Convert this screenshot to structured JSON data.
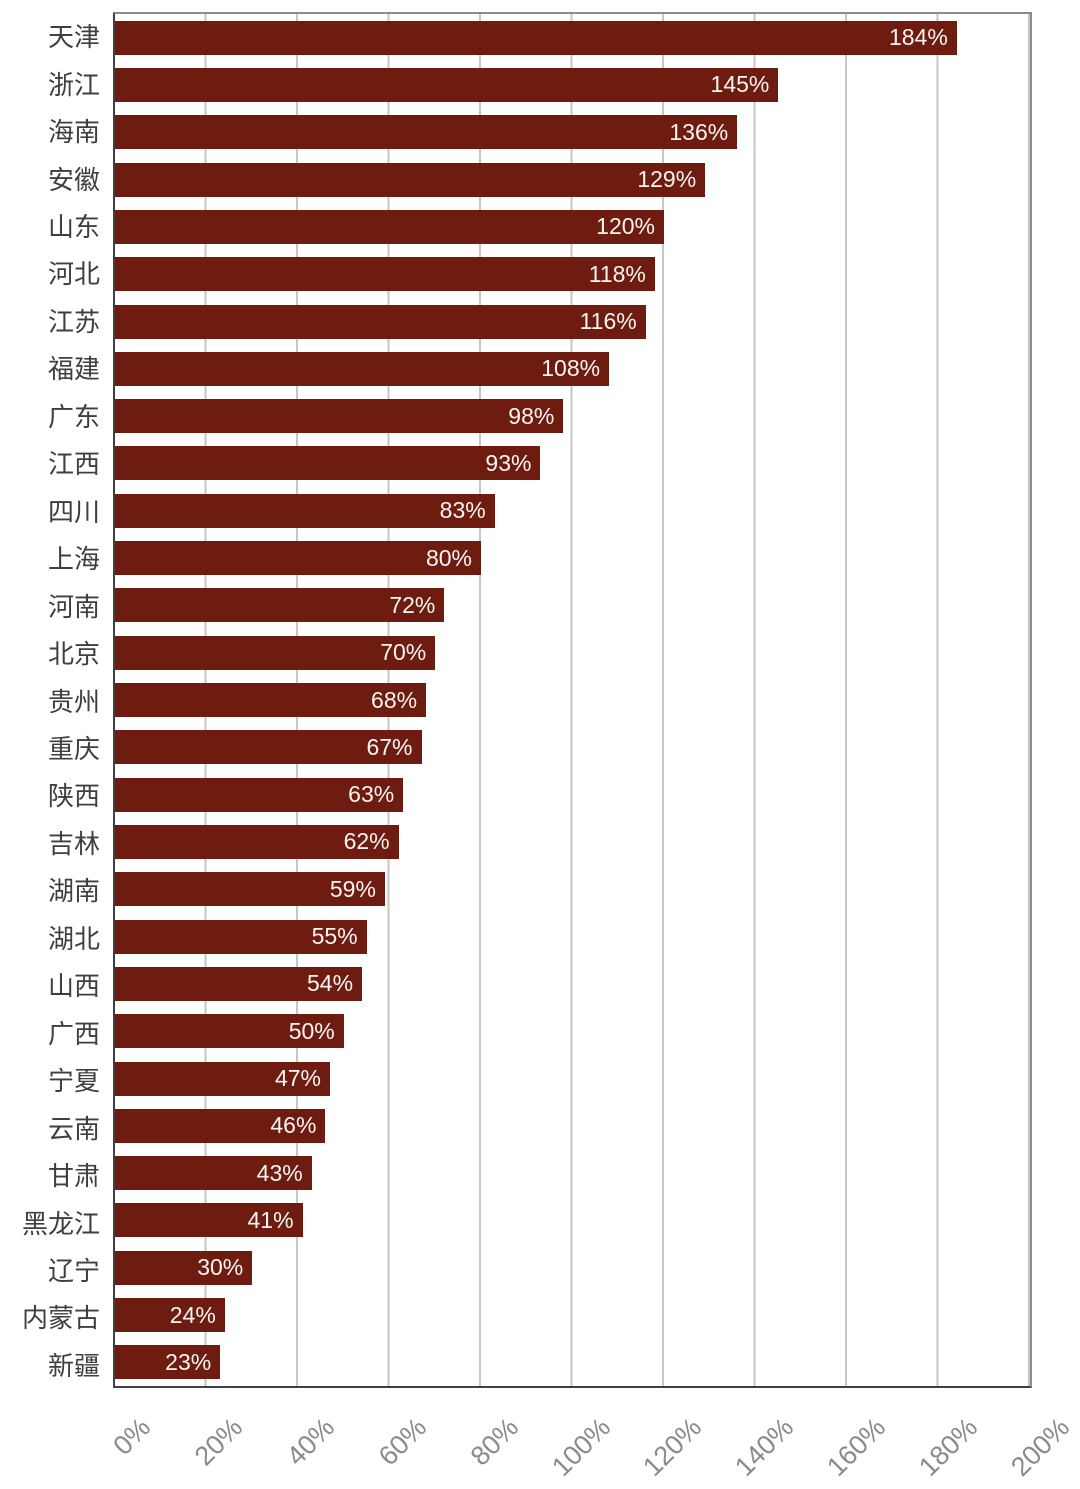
{
  "chart_data": {
    "type": "bar",
    "orientation": "horizontal",
    "categories": [
      "天津",
      "浙江",
      "海南",
      "安徽",
      "山东",
      "河北",
      "江苏",
      "福建",
      "广东",
      "江西",
      "四川",
      "上海",
      "河南",
      "北京",
      "贵州",
      "重庆",
      "陕西",
      "吉林",
      "湖南",
      "湖北",
      "山西",
      "广西",
      "宁夏",
      "云南",
      "甘肃",
      "黑龙江",
      "辽宁",
      "内蒙古",
      "新疆"
    ],
    "values": [
      184,
      145,
      136,
      129,
      120,
      118,
      116,
      108,
      98,
      93,
      83,
      80,
      72,
      70,
      68,
      67,
      63,
      62,
      59,
      55,
      54,
      50,
      47,
      46,
      43,
      41,
      30,
      24,
      23
    ],
    "value_labels": [
      "184%",
      "145%",
      "136%",
      "129%",
      "120%",
      "118%",
      "116%",
      "108%",
      "98%",
      "93%",
      "83%",
      "80%",
      "72%",
      "70%",
      "68%",
      "67%",
      "63%",
      "62%",
      "59%",
      "55%",
      "54%",
      "50%",
      "47%",
      "46%",
      "43%",
      "41%",
      "30%",
      "24%",
      "23%"
    ],
    "unit": "%",
    "xlim": [
      0,
      200
    ],
    "x_ticks": [
      "0%",
      "20%",
      "40%",
      "60%",
      "80%",
      "100%",
      "120%",
      "140%",
      "160%",
      "180%",
      "200%"
    ],
    "grid": "vertical gridlines every 20%",
    "legend": "none",
    "value_labels_position": "inside-end"
  },
  "colors": {
    "bar": "#6E1C10",
    "value_label": "#FAF5F3",
    "category_label": "#3F3F3F",
    "tick_label": "#8A8A8A",
    "gridline": "#C6C6C6",
    "axis_line": "#404040",
    "plot_border": "#8C8C8C",
    "background": "#FFFFFF"
  }
}
